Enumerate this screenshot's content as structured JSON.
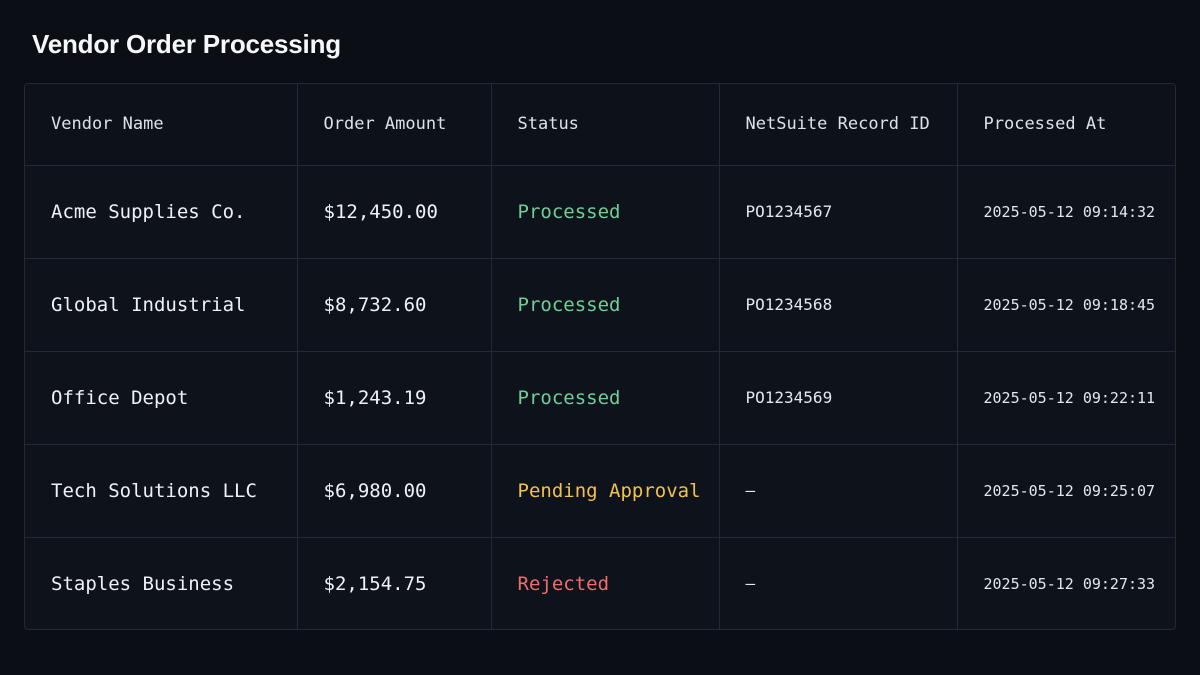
{
  "page": {
    "title": "Vendor Order Processing"
  },
  "table": {
    "columns": [
      "Vendor Name",
      "Order Amount",
      "Status",
      "NetSuite Record ID",
      "Processed At"
    ],
    "rows": [
      {
        "vendor": "Acme Supplies Co.",
        "amount": "$12,450.00",
        "status": "Processed",
        "status_kind": "processed",
        "record_id": "PO1234567",
        "processed_at": "2025-05-12 09:14:32"
      },
      {
        "vendor": "Global Industrial",
        "amount": "$8,732.60",
        "status": "Processed",
        "status_kind": "processed",
        "record_id": "PO1234568",
        "processed_at": "2025-05-12 09:18:45"
      },
      {
        "vendor": "Office Depot",
        "amount": "$1,243.19",
        "status": "Processed",
        "status_kind": "processed",
        "record_id": "PO1234569",
        "processed_at": "2025-05-12 09:22:11"
      },
      {
        "vendor": "Tech Solutions LLC",
        "amount": "$6,980.00",
        "status": "Pending Approval",
        "status_kind": "pending",
        "record_id": "—",
        "processed_at": "2025-05-12 09:25:07"
      },
      {
        "vendor": "Staples Business",
        "amount": "$2,154.75",
        "status": "Rejected",
        "status_kind": "rejected",
        "record_id": "—",
        "processed_at": "2025-05-12 09:27:33"
      }
    ]
  },
  "colors": {
    "background": "#0b0e14",
    "processed": "#6fcf97",
    "pending": "#f2c14e",
    "rejected": "#eb6f6f"
  }
}
